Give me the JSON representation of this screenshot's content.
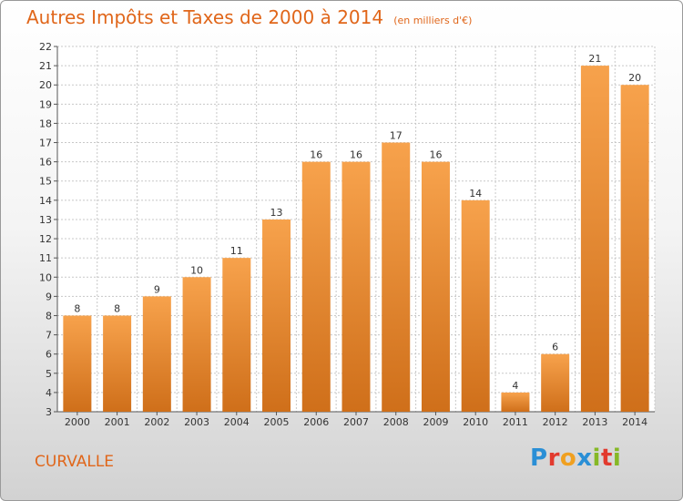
{
  "title": "Autres Impôts et Taxes de 2000 à 2014",
  "subtitle": "(en milliers d'€)",
  "commune": "CURVALLE",
  "logo": {
    "text": "Proxiti"
  },
  "colors": {
    "bar_top": "#f7a24c",
    "bar_bottom": "#cf6f1a",
    "accent": "#e0661a",
    "grid": "#c8c8c8"
  },
  "chart_data": {
    "type": "bar",
    "title": "Autres Impôts et Taxes de 2000 à 2014",
    "subtitle": "(en milliers d'€)",
    "categories": [
      "2000",
      "2001",
      "2002",
      "2003",
      "2004",
      "2005",
      "2006",
      "2007",
      "2008",
      "2009",
      "2010",
      "2011",
      "2012",
      "2013",
      "2014"
    ],
    "values": [
      8,
      8,
      9,
      10,
      11,
      13,
      16,
      16,
      17,
      16,
      14,
      4,
      6,
      21,
      20
    ],
    "ylim": [
      3,
      22
    ],
    "yticks": [
      3,
      4,
      5,
      6,
      7,
      8,
      9,
      10,
      11,
      12,
      13,
      14,
      15,
      16,
      17,
      18,
      19,
      20,
      21,
      22
    ],
    "grid": true,
    "data_labels": true
  }
}
